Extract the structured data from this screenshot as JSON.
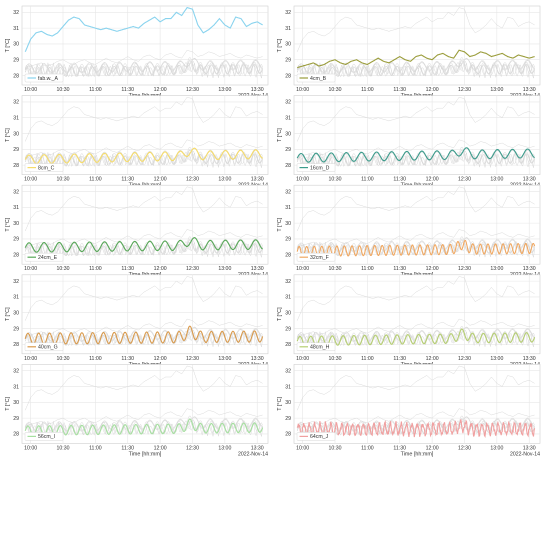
{
  "chart_data": {
    "type": "line",
    "layout": "6 rows x 2 columns of small multiples",
    "xlabel": "Time [hh:mm]",
    "ylabel": "T [°C]",
    "date_label": "2022-Nov-14",
    "x_ticks": [
      "10:00",
      "10:30",
      "11:00",
      "11:30",
      "12:00",
      "12:30",
      "13:00",
      "13:30"
    ],
    "y_ticks": [
      28,
      29,
      30,
      31,
      32
    ],
    "xlim": [
      "09:52",
      "13:40"
    ],
    "ylim": [
      27.4,
      32.4
    ],
    "grid": true,
    "legend_position": "lower left",
    "background_series_color": "#d9d9d9",
    "panels": [
      {
        "series": "fab.w._A",
        "color": "#89d3ee",
        "kind": "smooth",
        "points": [
          [
            "09:55",
            29.5
          ],
          [
            "10:00",
            30.3
          ],
          [
            "10:05",
            30.7
          ],
          [
            "10:10",
            30.8
          ],
          [
            "10:15",
            30.6
          ],
          [
            "10:20",
            30.5
          ],
          [
            "10:25",
            30.7
          ],
          [
            "10:30",
            31.1
          ],
          [
            "10:35",
            31.5
          ],
          [
            "10:40",
            31.7
          ],
          [
            "10:45",
            31.6
          ],
          [
            "10:50",
            31.2
          ],
          [
            "10:55",
            31.1
          ],
          [
            "11:00",
            31.0
          ],
          [
            "11:05",
            30.9
          ],
          [
            "11:10",
            31.0
          ],
          [
            "11:15",
            30.9
          ],
          [
            "11:20",
            30.8
          ],
          [
            "11:25",
            30.9
          ],
          [
            "11:30",
            31.0
          ],
          [
            "11:35",
            31.1
          ],
          [
            "11:40",
            31.0
          ],
          [
            "11:45",
            31.3
          ],
          [
            "11:50",
            31.5
          ],
          [
            "11:55",
            31.7
          ],
          [
            "12:00",
            31.4
          ],
          [
            "12:05",
            31.6
          ],
          [
            "12:10",
            31.6
          ],
          [
            "12:15",
            32.0
          ],
          [
            "12:20",
            31.8
          ],
          [
            "12:25",
            32.3
          ],
          [
            "12:30",
            32.2
          ],
          [
            "12:35",
            31.2
          ],
          [
            "12:40",
            30.7
          ],
          [
            "12:45",
            30.9
          ],
          [
            "12:50",
            31.2
          ],
          [
            "12:55",
            31.6
          ],
          [
            "13:00",
            31.2
          ],
          [
            "13:05",
            31.0
          ],
          [
            "13:10",
            31.7
          ],
          [
            "13:15",
            31.6
          ],
          [
            "13:20",
            31.1
          ],
          [
            "13:25",
            31.3
          ],
          [
            "13:30",
            31.4
          ],
          [
            "13:35",
            31.2
          ]
        ]
      },
      {
        "series": "4cm_B",
        "color": "#9a9c3a",
        "kind": "smooth",
        "points": [
          [
            "09:55",
            28.5
          ],
          [
            "10:00",
            28.6
          ],
          [
            "10:05",
            28.7
          ],
          [
            "10:10",
            28.8
          ],
          [
            "10:15",
            28.6
          ],
          [
            "10:20",
            28.7
          ],
          [
            "10:25",
            28.9
          ],
          [
            "10:30",
            29.0
          ],
          [
            "10:35",
            28.8
          ],
          [
            "10:40",
            28.7
          ],
          [
            "10:45",
            28.9
          ],
          [
            "10:50",
            29.0
          ],
          [
            "10:55",
            28.8
          ],
          [
            "11:00",
            28.7
          ],
          [
            "11:05",
            28.9
          ],
          [
            "11:10",
            29.1
          ],
          [
            "11:15",
            28.9
          ],
          [
            "11:20",
            28.8
          ],
          [
            "11:25",
            29.0
          ],
          [
            "11:30",
            29.2
          ],
          [
            "11:35",
            29.0
          ],
          [
            "11:40",
            28.9
          ],
          [
            "11:45",
            29.2
          ],
          [
            "11:50",
            29.3
          ],
          [
            "11:55",
            29.1
          ],
          [
            "12:00",
            29.0
          ],
          [
            "12:05",
            29.3
          ],
          [
            "12:10",
            29.4
          ],
          [
            "12:15",
            29.2
          ],
          [
            "12:20",
            29.1
          ],
          [
            "12:25",
            29.6
          ],
          [
            "12:30",
            29.5
          ],
          [
            "12:35",
            29.2
          ],
          [
            "12:40",
            29.3
          ],
          [
            "12:45",
            29.5
          ],
          [
            "12:50",
            29.4
          ],
          [
            "12:55",
            29.2
          ],
          [
            "13:00",
            29.3
          ],
          [
            "13:05",
            29.4
          ],
          [
            "13:10",
            29.2
          ],
          [
            "13:15",
            29.1
          ],
          [
            "13:20",
            29.3
          ],
          [
            "13:25",
            29.2
          ],
          [
            "13:30",
            29.1
          ],
          [
            "13:35",
            29.2
          ]
        ]
      },
      {
        "series": "8cm_C",
        "color": "#f6dc6a",
        "kind": "wave",
        "wave": {
          "base_start": 28.35,
          "base_end": 28.7,
          "amplitude": 0.28,
          "period_min": 14,
          "bump_time": "12:28",
          "bump": 0.3
        }
      },
      {
        "series": "16cm_D",
        "color": "#3c9c8c",
        "kind": "wave",
        "wave": {
          "base_start": 28.45,
          "base_end": 28.75,
          "amplitude": 0.28,
          "period_min": 14,
          "bump_time": "12:28",
          "bump": 0.25
        }
      },
      {
        "series": "24cm_E",
        "color": "#58a858",
        "kind": "wave",
        "wave": {
          "base_start": 28.45,
          "base_end": 28.65,
          "amplitude": 0.3,
          "period_min": 14,
          "bump_time": "12:28",
          "bump": 0.3
        }
      },
      {
        "series": "32cm_F",
        "color": "#f0a862",
        "kind": "wave",
        "wave": {
          "base_start": 28.2,
          "base_end": 28.4,
          "amplitude": 0.32,
          "period_min": 7,
          "bump_time": "12:28",
          "bump": 0.3
        }
      },
      {
        "series": "40cm_G",
        "color": "#d99a4c",
        "kind": "wave",
        "wave": {
          "base_start": 28.35,
          "base_end": 28.5,
          "amplitude": 0.35,
          "period_min": 10,
          "bump_time": "12:28",
          "bump": 0.35
        }
      },
      {
        "series": "48cm_H",
        "color": "#b6cf72",
        "kind": "wave",
        "wave": {
          "base_start": 28.2,
          "base_end": 28.45,
          "amplitude": 0.3,
          "period_min": 10,
          "bump_time": "12:28",
          "bump": 0.3
        }
      },
      {
        "series": "56cm_I",
        "color": "#a6e0a0",
        "kind": "wave",
        "wave": {
          "base_start": 28.2,
          "base_end": 28.4,
          "amplitude": 0.3,
          "period_min": 10,
          "bump_time": "12:28",
          "bump": 0.3
        }
      },
      {
        "series": "64cm_J",
        "color": "#f0a0a0",
        "kind": "noisy",
        "wave": {
          "base_start": 28.3,
          "base_end": 28.3,
          "amplitude": 0.35,
          "period_min": 5,
          "bump_time": "12:28",
          "bump": 0.2
        }
      }
    ]
  }
}
